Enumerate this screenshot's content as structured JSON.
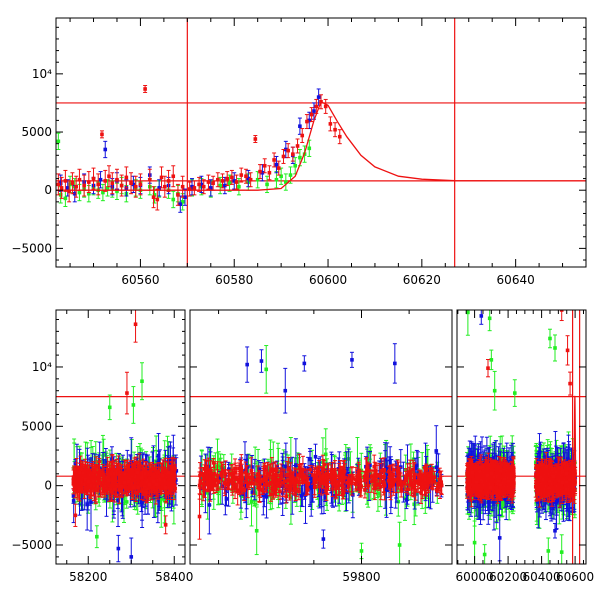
{
  "chart_data": [
    {
      "type": "scatter",
      "title": "",
      "xlabel": "",
      "ylabel": "",
      "xlim": [
        60542,
        60655
      ],
      "ylim": [
        -6600,
        14800
      ],
      "grid": false,
      "x_ticks": [
        60560,
        60580,
        60600,
        60620,
        60640
      ],
      "x_tick_labels": [
        "60560",
        "60580",
        "60600",
        "60620",
        "60640"
      ],
      "y_ticks": [
        -5000,
        0,
        5000,
        10000
      ],
      "y_tick_labels": [
        "−5000",
        "0",
        "5000",
        "10⁴"
      ],
      "reference_lines": {
        "horizontal": [
          7500,
          800
        ],
        "vertical": [
          60570,
          60627
        ]
      },
      "colors": {
        "series_green": "#22ee22",
        "series_blue": "#1111dd",
        "series_red": "#ee1111",
        "model": "#ee1111"
      },
      "model_curve": {
        "x": [
          60542,
          60560,
          60580,
          60585,
          60590,
          60593,
          60595,
          60597,
          60598.5,
          60600,
          60602,
          60604,
          60607,
          60610,
          60615,
          60620,
          60627,
          60640,
          60655
        ],
        "y": [
          0,
          0,
          0,
          0,
          150,
          1200,
          3200,
          6000,
          7600,
          7300,
          5900,
          4600,
          3000,
          2000,
          1200,
          950,
          820,
          800,
          800
        ]
      },
      "series": [
        {
          "name": "",
          "color": "#22ee22",
          "x": [
            60542.5,
            60543,
            60544,
            60545,
            60546,
            60547,
            60548,
            60549,
            60550,
            60551,
            60552,
            60553,
            60554,
            60555,
            60556,
            60557,
            60559,
            60560,
            60562,
            60563,
            60564,
            60566,
            60567,
            60568,
            60569,
            60571,
            60573,
            60575,
            60577,
            60579,
            60581,
            60583,
            60585,
            60587,
            60589,
            60590,
            60591,
            60592,
            60593,
            60594,
            60595,
            60596
          ],
          "y": [
            4200,
            -400,
            -700,
            500,
            300,
            -200,
            100,
            -300,
            300,
            0,
            -200,
            200,
            100,
            -100,
            400,
            -300,
            200,
            0,
            300,
            -400,
            100,
            0,
            -800,
            -300,
            -1000,
            200,
            300,
            100,
            400,
            600,
            300,
            700,
            900,
            500,
            900,
            1200,
            700,
            1300,
            2100,
            2800,
            3100,
            3600
          ]
        },
        {
          "name": "",
          "color": "#1111dd",
          "x": [
            60543,
            60544.5,
            60546,
            60548,
            60550,
            60551.5,
            60552.5,
            60554,
            60555,
            60557,
            60558.5,
            60560,
            60562,
            60564,
            60566,
            60568.5,
            60569.5,
            60571,
            60573,
            60575,
            60578,
            60580,
            60583,
            60586,
            60589,
            60591,
            60592.5,
            60594,
            60596,
            60597,
            60598
          ],
          "y": [
            600,
            200,
            -300,
            700,
            400,
            900,
            3500,
            300,
            800,
            200,
            500,
            400,
            1300,
            200,
            400,
            -1200,
            -600,
            300,
            500,
            200,
            400,
            800,
            1000,
            1500,
            2200,
            3500,
            3000,
            5500,
            6000,
            6800,
            8000
          ]
        },
        {
          "name": "",
          "color": "#ee1111",
          "x": [
            60542.5,
            60543.2,
            60544,
            60544.8,
            60545.5,
            60546.3,
            60547,
            60548,
            60549,
            60550,
            60551,
            60551.8,
            60552.5,
            60553.3,
            60554,
            60555,
            60556,
            60557,
            60558,
            60559,
            60560,
            60561,
            60562,
            60562.8,
            60563.6,
            60564.5,
            60565.2,
            60566,
            60567,
            60568,
            60569,
            60570.5,
            60571.5,
            60572.5,
            60573.5,
            60574.5,
            60575.5,
            60576.5,
            60577.5,
            60578.5,
            60579.5,
            60580.5,
            60581.5,
            60582.5,
            60583.5,
            60584.5,
            60585.5,
            60586.5,
            60587.5,
            60588.5,
            60589.5,
            60590.5,
            60591.5,
            60592.5,
            60593.5,
            60594.5,
            60595.5,
            60596.5,
            60597.5,
            60598.5,
            60599.5,
            60600.5,
            60601.5,
            60602.5
          ],
          "y": [
            500,
            200,
            800,
            -100,
            600,
            300,
            900,
            400,
            700,
            1000,
            500,
            4800,
            800,
            1200,
            600,
            900,
            400,
            1100,
            600,
            300,
            500,
            8700,
            900,
            -600,
            -800,
            1100,
            300,
            800,
            1200,
            -400,
            300,
            100,
            200,
            500,
            300,
            700,
            600,
            900,
            800,
            1000,
            1100,
            700,
            1300,
            1200,
            900,
            4400,
            1600,
            2100,
            1500,
            2600,
            1900,
            2900,
            3400,
            3100,
            3800,
            4700,
            5900,
            6500,
            7200,
            7600,
            7200,
            5700,
            5200,
            4600
          ],
          "err": [
            900,
            900,
            900,
            900,
            900,
            900,
            900,
            900,
            900,
            900,
            900,
            300,
            900,
            900,
            900,
            900,
            900,
            900,
            900,
            900,
            900,
            300,
            900,
            900,
            900,
            900,
            900,
            900,
            900,
            900,
            900,
            600,
            600,
            600,
            600,
            600,
            600,
            600,
            600,
            600,
            600,
            600,
            600,
            600,
            600,
            300,
            600,
            600,
            600,
            600,
            600,
            600,
            600,
            600,
            600,
            600,
            600,
            600,
            600,
            600,
            600,
            600,
            600,
            600
          ]
        }
      ]
    },
    {
      "type": "scatter",
      "title": "",
      "xlabel": "",
      "ylabel": "",
      "y_tick_labels": [
        "−5000",
        "0",
        "5000",
        "10⁴"
      ],
      "y_ticks": [
        -5000,
        0,
        5000,
        10000
      ],
      "ylim": [
        -6600,
        14800
      ],
      "grid": false,
      "reference_lines": {
        "horizontal": [
          7500,
          800
        ],
        "vertical": [
          60585,
          60627
        ]
      },
      "colors": {
        "series_green": "#22ee22",
        "series_blue": "#1111dd",
        "series_red": "#ee1111"
      },
      "segments": [
        {
          "xlim": [
            58125,
            58425
          ],
          "x_ticks": [
            58200,
            58400
          ],
          "x_tick_labels": [
            "58200",
            "58400"
          ],
          "data_range": [
            58165,
            58405
          ],
          "outliers": [
            {
              "x": 58310,
              "y": 13600,
              "color": "#ee1111"
            },
            {
              "x": 58325,
              "y": 8800,
              "color": "#22ee22"
            },
            {
              "x": 58290,
              "y": 7800,
              "color": "#ee1111"
            },
            {
              "x": 58250,
              "y": 6600,
              "color": "#22ee22"
            },
            {
              "x": 58305,
              "y": 6800,
              "color": "#22ee22"
            },
            {
              "x": 58220,
              "y": -4300,
              "color": "#22ee22"
            },
            {
              "x": 58270,
              "y": -5300,
              "color": "#1111dd"
            },
            {
              "x": 58300,
              "y": -6000,
              "color": "#1111dd"
            },
            {
              "x": 58380,
              "y": -3300,
              "color": "#ee1111"
            },
            {
              "x": 58170,
              "y": -2500,
              "color": "#ee1111"
            }
          ]
        },
        {
          "xlim": [
            59620,
            59895
          ],
          "x_ticks": [
            59800
          ],
          "x_tick_labels": [
            "59800"
          ],
          "data_range": [
            59630,
            59885
          ],
          "outliers": [
            {
              "x": 59680,
              "y": 10200,
              "color": "#1111dd"
            },
            {
              "x": 59695,
              "y": 10500,
              "color": "#1111dd"
            },
            {
              "x": 59700,
              "y": 9800,
              "color": "#22ee22"
            },
            {
              "x": 59740,
              "y": 10300,
              "color": "#1111dd"
            },
            {
              "x": 59790,
              "y": 10600,
              "color": "#1111dd"
            },
            {
              "x": 59835,
              "y": 10300,
              "color": "#1111dd"
            },
            {
              "x": 59720,
              "y": 8000,
              "color": "#1111dd"
            },
            {
              "x": 59690,
              "y": -3800,
              "color": "#22ee22"
            },
            {
              "x": 59760,
              "y": -4500,
              "color": "#1111dd"
            },
            {
              "x": 59800,
              "y": -5500,
              "color": "#22ee22"
            },
            {
              "x": 59840,
              "y": -5000,
              "color": "#22ee22"
            },
            {
              "x": 59630,
              "y": -2600,
              "color": "#ee1111"
            }
          ]
        },
        {
          "xlim": [
            59895,
            60665
          ],
          "x_ticks": [
            60000,
            60200,
            60400,
            60600
          ],
          "x_tick_labels": [
            "60000",
            "60200",
            "60400",
            "60600"
          ],
          "data_range": [
            [
              59955,
              60235
            ],
            [
              60365,
              60600
            ]
          ],
          "outliers": [
            {
              "x": 59960,
              "y": 14600,
              "color": "#22ee22"
            },
            {
              "x": 60040,
              "y": 14300,
              "color": "#1111dd"
            },
            {
              "x": 60090,
              "y": 14100,
              "color": "#22ee22"
            },
            {
              "x": 60520,
              "y": 14800,
              "color": "#ee1111"
            },
            {
              "x": 60100,
              "y": 10600,
              "color": "#22ee22"
            },
            {
              "x": 60080,
              "y": 9900,
              "color": "#ee1111"
            },
            {
              "x": 60450,
              "y": 12400,
              "color": "#22ee22"
            },
            {
              "x": 60480,
              "y": 11600,
              "color": "#22ee22"
            },
            {
              "x": 60555,
              "y": 11400,
              "color": "#ee1111"
            },
            {
              "x": 60570,
              "y": 8600,
              "color": "#ee1111"
            },
            {
              "x": 60120,
              "y": 8000,
              "color": "#22ee22"
            },
            {
              "x": 60240,
              "y": 7800,
              "color": "#22ee22"
            },
            {
              "x": 60000,
              "y": -4800,
              "color": "#22ee22"
            },
            {
              "x": 60060,
              "y": -5800,
              "color": "#22ee22"
            },
            {
              "x": 60150,
              "y": -4400,
              "color": "#1111dd"
            },
            {
              "x": 60440,
              "y": -5500,
              "color": "#22ee22"
            },
            {
              "x": 60520,
              "y": -5600,
              "color": "#22ee22"
            },
            {
              "x": 60480,
              "y": -3800,
              "color": "#1111dd"
            }
          ]
        }
      ],
      "model_curve_segment_xlim": [
        60585,
        60610
      ]
    }
  ]
}
